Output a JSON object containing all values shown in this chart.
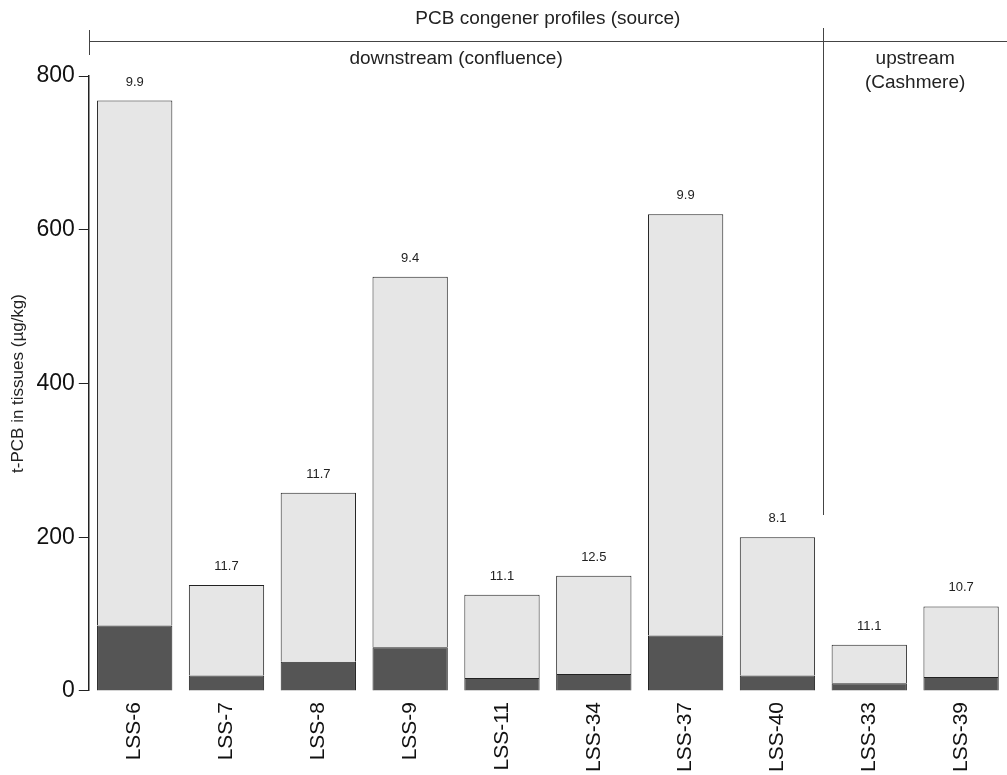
{
  "chart_data": {
    "type": "bar",
    "title": "PCB congener profiles (source)",
    "ylabel": "t-PCB in tissues (µg/kg)",
    "categories": [
      "LSS-6",
      "LSS-7",
      "LSS-8",
      "LSS-9",
      "LSS-11",
      "LSS-34",
      "LSS-37",
      "LSS-40",
      "LSS-33",
      "LSS-39"
    ],
    "stacked": true,
    "series": [
      {
        "color": "#555555",
        "values": [
          85,
          20,
          38,
          57,
          17,
          22,
          72,
          20,
          10,
          18
        ]
      },
      {
        "color": "#e6e6e6",
        "values": [
          683,
          118,
          220,
          482,
          108,
          128,
          548,
          180,
          50,
          92
        ]
      }
    ],
    "ylim": [
      0,
      800
    ],
    "yticks": [
      0,
      200,
      400,
      600,
      800
    ],
    "annotations": [
      "downstream (confluence)",
      "upstream (Cashmere)",
      {
        "text": "9.9",
        "x": "LSS-6",
        "y": 768
      },
      {
        "text": "11.7",
        "x": "LSS-7",
        "y": 138
      },
      {
        "text": "11.7",
        "x": "LSS-8",
        "y": 258
      },
      {
        "text": "9.4",
        "x": "LSS-9",
        "y": 539
      },
      {
        "text": "11.1",
        "x": "LSS-11",
        "y": 125
      },
      {
        "text": "12.5",
        "x": "LSS-34",
        "y": 150
      },
      {
        "text": "9.9",
        "x": "LSS-37",
        "y": 620
      },
      {
        "text": "8.1",
        "x": "LSS-40",
        "y": 200
      },
      {
        "text": "11.1",
        "x": "LSS-33",
        "y": 60
      },
      {
        "text": "10.7",
        "x": "LSS-39",
        "y": 110
      }
    ]
  }
}
